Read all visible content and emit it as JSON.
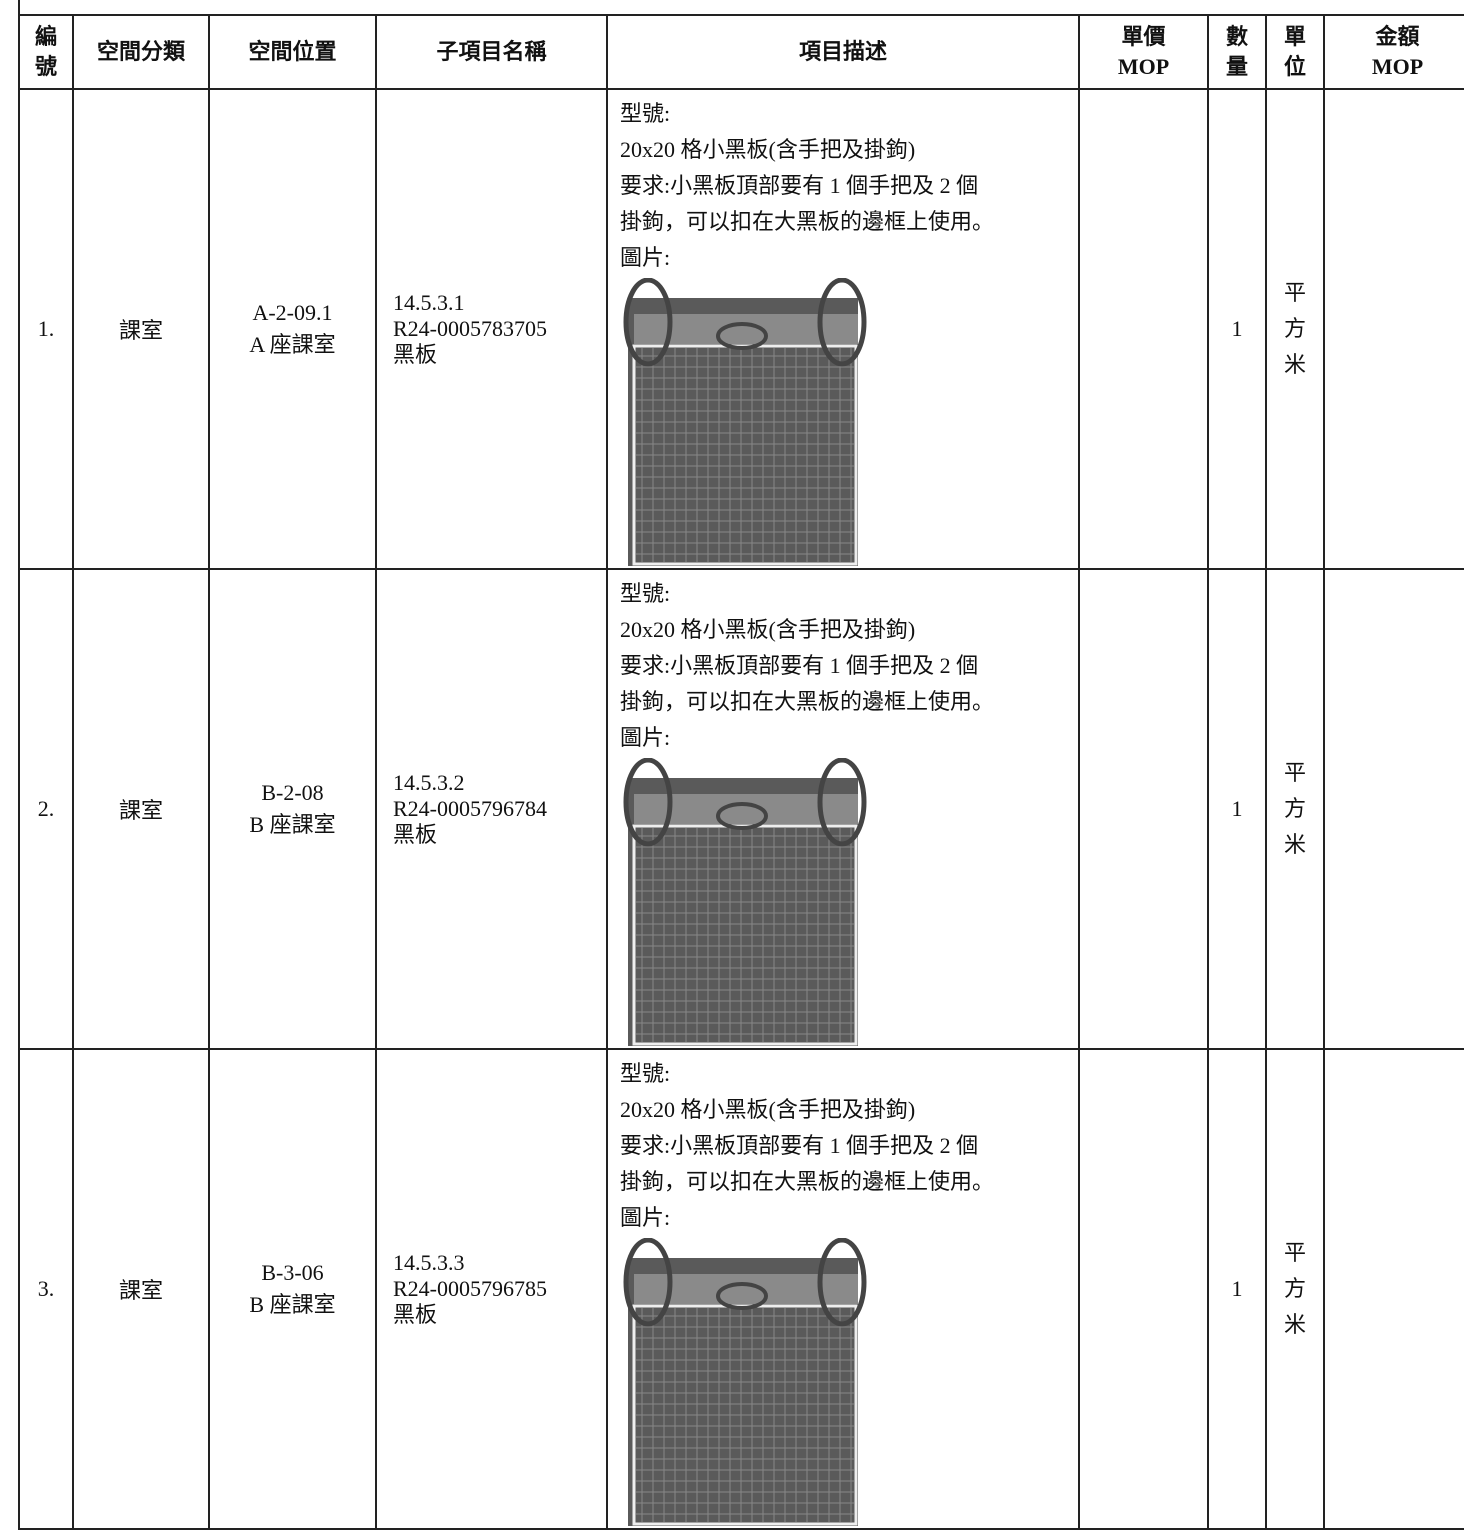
{
  "table": {
    "headers": [
      [
        "編",
        "號"
      ],
      [
        "空間分類"
      ],
      [
        "空間位置"
      ],
      [
        "子項目名稱"
      ],
      [
        "項目描述"
      ],
      [
        "單價",
        "MOP"
      ],
      [
        "數",
        "量"
      ],
      [
        "單",
        "位"
      ],
      [
        "金額",
        "MOP"
      ]
    ],
    "rows": [
      {
        "no": "1.",
        "category": "課室",
        "location": [
          "A-2-09.1",
          "A 座課室"
        ],
        "item": [
          "14.5.3.1",
          "R24-0005783705",
          "黑板"
        ],
        "description": [
          "型號:",
          "20x20 格小黑板(含手把及掛鉤)",
          "要求:小黑板頂部要有 1 個手把及 2 個",
          "掛鉤，可以扣在大黑板的邊框上使用。",
          "圖片:"
        ],
        "qty": "1",
        "unit": "平方米"
      },
      {
        "no": "2.",
        "category": "課室",
        "location": [
          "B-2-08",
          "B 座課室"
        ],
        "item": [
          "14.5.3.2",
          "R24-0005796784",
          "黑板"
        ],
        "description": [
          "型號:",
          "20x20 格小黑板(含手把及掛鉤)",
          "要求:小黑板頂部要有 1 個手把及 2 個",
          "掛鉤，可以扣在大黑板的邊框上使用。",
          "圖片:"
        ],
        "qty": "1",
        "unit": "平方米"
      },
      {
        "no": "3.",
        "category": "課室",
        "location": [
          "B-3-06",
          "B 座課室"
        ],
        "item": [
          "14.5.3.3",
          "R24-0005796785",
          "黑板"
        ],
        "description": [
          "型號:",
          "20x20 格小黑板(含手把及掛鉤)",
          "要求:小黑板頂部要有 1 個手把及 2 個",
          "掛鉤，可以扣在大黑板的邊框上使用。",
          "圖片:"
        ],
        "qty": "1",
        "unit": "平方米"
      }
    ]
  }
}
